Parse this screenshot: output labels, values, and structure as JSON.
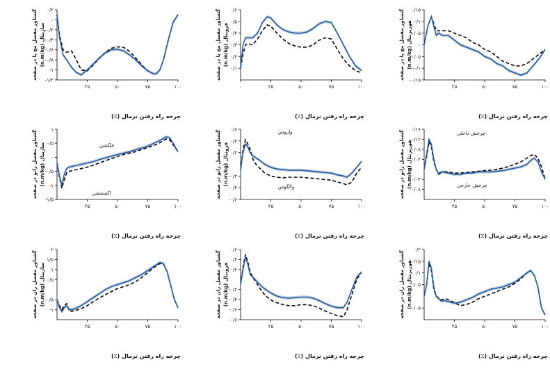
{
  "colors": {
    "solid": "#1f5aa6",
    "dashed": "#000000",
    "band": "#b9c4d2"
  },
  "chart_data": [
    {
      "type": "line",
      "xlabel": "چرخه راه رفتن نرمال (٪)",
      "ylabel": [
        "گشتاور مفصل مچ پا در صفحه",
        "ساژیتال (n.m/kg)"
      ],
      "xlim": [
        0,
        100
      ],
      "ylim": [
        -1.2,
        0.2
      ],
      "xticks": [
        25,
        50,
        75,
        100
      ],
      "xtick_labels": [
        "۲۵",
        "۵۰",
        "۷۵",
        "۱۰۰"
      ],
      "yticks": [
        0.2,
        0,
        -0.2,
        -0.4,
        -0.6,
        -0.8,
        -1,
        -1.2
      ],
      "ytick_labels": [
        "۰/۲",
        "۰",
        "-۰/۲",
        "-۰/۴",
        "-۰/۶",
        "-۰/۸",
        "-۱",
        "-۱/۲"
      ],
      "x": [
        0,
        2,
        5,
        8,
        12,
        16,
        20,
        25,
        30,
        35,
        40,
        45,
        50,
        55,
        60,
        65,
        70,
        75,
        80,
        82,
        85,
        88,
        92,
        96,
        100
      ],
      "series": [
        {
          "values": [
            0.1,
            -0.35,
            -0.7,
            -0.8,
            -0.95,
            -1.05,
            -1.1,
            -1.0,
            -0.88,
            -0.76,
            -0.66,
            -0.6,
            -0.59,
            -0.62,
            -0.7,
            -0.8,
            -0.92,
            -1.02,
            -1.08,
            -1.08,
            -1.0,
            -0.8,
            -0.4,
            -0.05,
            0.1
          ]
        },
        {
          "values": [
            0.1,
            -0.3,
            -0.6,
            -0.65,
            -0.62,
            -0.8,
            -1.0,
            -1.02,
            -0.9,
            -0.77,
            -0.65,
            -0.57,
            -0.54,
            -0.55,
            -0.63,
            -0.76,
            -0.9,
            -1.02,
            -1.08,
            -1.08,
            -1.0,
            -0.8,
            -0.4,
            -0.05,
            0.1
          ]
        }
      ]
    },
    {
      "type": "line",
      "xlabel": "چرخه راه رفتن نرمال (٪)",
      "ylabel": [
        "گشتاور مفصل مچ پا در صفحه",
        "فرونتال (n.m/kg)"
      ],
      "xlim": [
        0,
        100
      ],
      "ylim": [
        0,
        0.6
      ],
      "xticks": [
        0,
        25,
        50,
        75,
        100
      ],
      "xtick_labels": [
        "۰",
        "۲۵",
        "۵۰",
        "۷۵",
        "۱۰۰"
      ],
      "yticks": [
        0.6,
        0.5,
        0.4,
        0.3,
        0.2,
        0.1
      ],
      "ytick_labels": [
        "۰/۶",
        "۰/۵",
        "۰/۴",
        "۰/۳",
        "۰/۲",
        "۰/۱"
      ],
      "x": [
        0,
        2,
        4,
        6,
        10,
        14,
        18,
        22,
        25,
        30,
        35,
        40,
        45,
        50,
        55,
        60,
        65,
        70,
        75,
        80,
        85,
        90,
        95,
        100
      ],
      "series": [
        {
          "values": [
            0.1,
            0.3,
            0.36,
            0.36,
            0.36,
            0.4,
            0.49,
            0.54,
            0.53,
            0.47,
            0.43,
            0.41,
            0.4,
            0.4,
            0.41,
            0.44,
            0.48,
            0.5,
            0.49,
            0.4,
            0.3,
            0.2,
            0.12,
            0.08
          ]
        },
        {
          "values": [
            0.1,
            0.22,
            0.3,
            0.31,
            0.3,
            0.35,
            0.42,
            0.47,
            0.46,
            0.4,
            0.35,
            0.31,
            0.29,
            0.28,
            0.28,
            0.3,
            0.34,
            0.36,
            0.35,
            0.26,
            0.18,
            0.12,
            0.08,
            0.06
          ]
        }
      ]
    },
    {
      "type": "line",
      "xlabel": "چرخه راه رفتن نرمال (٪)",
      "ylabel": [
        "گشتاور مفصل مچ پا در صفحه",
        "هوریزنتال (n.m/kg)"
      ],
      "xlim": [
        0,
        100
      ],
      "ylim": [
        -0.15,
        0.15
      ],
      "xticks": [
        25,
        50,
        75,
        100
      ],
      "xtick_labels": [
        "۲۵",
        "۵۰",
        "۷۵",
        "۱۰۰"
      ],
      "yticks": [
        0.15,
        0.1,
        0.05,
        0,
        -0.05,
        -0.1,
        -0.15
      ],
      "ytick_labels": [
        "۰/۱۵",
        "۰/۱",
        "۰/۰۵",
        "۰",
        "-۰/۰۵",
        "-۰/۱",
        "-۰/۱۵"
      ],
      "x": [
        0,
        3,
        6,
        8,
        10,
        12,
        15,
        20,
        25,
        30,
        35,
        40,
        45,
        50,
        55,
        60,
        65,
        70,
        75,
        80,
        85,
        90,
        95,
        100
      ],
      "series": [
        {
          "values": [
            0.0,
            0.08,
            0.12,
            0.08,
            0.04,
            0.05,
            0.04,
            0.04,
            0.02,
            0.0,
            -0.01,
            -0.02,
            -0.03,
            -0.05,
            -0.06,
            -0.08,
            -0.09,
            -0.11,
            -0.12,
            -0.13,
            -0.12,
            -0.09,
            -0.06,
            -0.02
          ]
        },
        {
          "values": [
            0.0,
            0.08,
            0.12,
            0.09,
            0.06,
            0.06,
            0.06,
            0.06,
            0.05,
            0.04,
            0.03,
            0.01,
            0.0,
            -0.02,
            -0.03,
            -0.05,
            -0.07,
            -0.08,
            -0.09,
            -0.09,
            -0.08,
            -0.06,
            -0.04,
            -0.02
          ]
        }
      ]
    },
    {
      "type": "line",
      "xlabel": "چرخه راه رفتن نرمال (٪)",
      "ylabel": [
        "گشتاور مفصل زانو در صفحه",
        "ساژیتال (n.m/kg)"
      ],
      "xlim": [
        0,
        100
      ],
      "ylim": [
        -1.5,
        1
      ],
      "xticks": [
        25,
        50,
        75,
        100
      ],
      "xtick_labels": [
        "۲۵",
        "۵۰",
        "۷۵",
        "۱۰۰"
      ],
      "yticks": [
        1,
        0.5,
        0,
        -0.5,
        -1,
        -1.5
      ],
      "ytick_labels": [
        "۱",
        "۰/۵",
        "۰",
        "-۰/۵",
        "-۱",
        "-۱/۵"
      ],
      "annotations": [
        "فلکشن",
        "اکستنشن"
      ],
      "x": [
        0,
        2,
        4,
        6,
        8,
        10,
        15,
        20,
        25,
        30,
        35,
        40,
        45,
        50,
        55,
        60,
        65,
        70,
        75,
        80,
        85,
        90,
        93,
        96,
        100
      ],
      "series": [
        {
          "values": [
            -0.2,
            -0.65,
            -1.0,
            -0.6,
            -0.4,
            -0.35,
            -0.3,
            -0.25,
            -0.2,
            -0.15,
            -0.08,
            -0.02,
            0.04,
            0.1,
            0.15,
            0.2,
            0.27,
            0.33,
            0.4,
            0.5,
            0.6,
            0.73,
            0.7,
            0.5,
            0.2
          ]
        },
        {
          "values": [
            -0.2,
            -0.7,
            -1.1,
            -0.8,
            -0.55,
            -0.5,
            -0.45,
            -0.4,
            -0.35,
            -0.28,
            -0.2,
            -0.12,
            -0.05,
            0.03,
            0.1,
            0.15,
            0.2,
            0.28,
            0.35,
            0.42,
            0.52,
            0.65,
            0.63,
            0.45,
            0.2
          ]
        }
      ]
    },
    {
      "type": "line",
      "xlabel": "چرخه راه رفتن نرمال (٪)",
      "ylabel": [
        "گشتاور مفصل زانو در صفحه",
        "فرونتال (n.m/kg)"
      ],
      "xlim": [
        0,
        100
      ],
      "ylim": [
        -0.6,
        0.6
      ],
      "xticks": [
        25,
        50,
        75,
        100
      ],
      "xtick_labels": [
        "۲۵",
        "۵۰",
        "۷۵",
        "۱۰۰"
      ],
      "yticks": [
        0.6,
        0.4,
        0.2,
        -0.2,
        -0.4,
        -0.6
      ],
      "ytick_labels": [
        "۰/۶",
        "۰/۴",
        "۰/۲",
        "-۰/۲",
        "-۰/۴",
        "-۰/۶"
      ],
      "annotations": [
        "واروس",
        "والگوس"
      ],
      "x": [
        0,
        2,
        4,
        6,
        8,
        10,
        12,
        15,
        20,
        25,
        30,
        35,
        40,
        45,
        50,
        55,
        60,
        65,
        70,
        75,
        80,
        85,
        88,
        92,
        96,
        100
      ],
      "series": [
        {
          "values": [
            -0.1,
            0.2,
            0.35,
            0.3,
            0.2,
            0.15,
            0.12,
            0.08,
            0.0,
            -0.05,
            -0.08,
            -0.09,
            -0.1,
            -0.1,
            -0.1,
            -0.11,
            -0.12,
            -0.13,
            -0.14,
            -0.15,
            -0.18,
            -0.2,
            -0.22,
            -0.15,
            -0.05,
            0.05
          ]
        },
        {
          "values": [
            -0.1,
            0.25,
            0.42,
            0.35,
            0.25,
            0.1,
            0.02,
            -0.05,
            -0.15,
            -0.2,
            -0.22,
            -0.23,
            -0.22,
            -0.22,
            -0.22,
            -0.23,
            -0.24,
            -0.25,
            -0.26,
            -0.27,
            -0.3,
            -0.33,
            -0.35,
            -0.3,
            -0.15,
            -0.05
          ]
        }
      ]
    },
    {
      "type": "line",
      "xlabel": "چرخه راه رفتن نرمال (٪)",
      "ylabel": [
        "گشتاور مفصل زانو در صفحه",
        "هوریزنتال (n.m/kg)"
      ],
      "xlim": [
        0,
        100
      ],
      "ylim": [
        -0.12,
        0.16
      ],
      "xticks": [
        25,
        50,
        75,
        100
      ],
      "xtick_labels": [
        "۲۵",
        "۵۰",
        "۷۵",
        "۱۰۰"
      ],
      "yticks": [
        0.16,
        0.12,
        0.08,
        0.04,
        -0.04,
        -0.08
      ],
      "ytick_labels": [
        "۰/۱۶",
        "۰/۱۲",
        "۰/۰۸",
        "۰/۰۴",
        "-۰/۰۴",
        "-۰/۰۸"
      ],
      "annotations": [
        "چرخش داخلی",
        "چرخش خارجی"
      ],
      "x": [
        0,
        2,
        4,
        6,
        8,
        10,
        12,
        15,
        20,
        25,
        30,
        35,
        40,
        45,
        50,
        55,
        60,
        65,
        70,
        75,
        80,
        85,
        88,
        91,
        94,
        97,
        100
      ],
      "series": [
        {
          "values": [
            0.0,
            0.06,
            0.12,
            0.1,
            0.04,
            0.0,
            -0.02,
            -0.01,
            -0.015,
            -0.02,
            -0.02,
            -0.015,
            -0.015,
            -0.01,
            -0.01,
            -0.01,
            -0.008,
            -0.005,
            0.0,
            0.005,
            0.01,
            0.02,
            0.035,
            0.045,
            0.03,
            -0.01,
            -0.04
          ]
        },
        {
          "values": [
            0.0,
            0.05,
            0.11,
            0.09,
            0.03,
            0.0,
            -0.015,
            -0.01,
            -0.01,
            -0.015,
            -0.015,
            -0.012,
            -0.01,
            -0.008,
            -0.005,
            -0.003,
            0.0,
            0.005,
            0.012,
            0.02,
            0.03,
            0.045,
            0.055,
            0.06,
            0.045,
            0.01,
            -0.04
          ]
        }
      ]
    },
    {
      "type": "line",
      "xlabel": "چرخه راه رفتن نرمال (٪)",
      "ylabel": [
        "گشتاور مفصل ران در صفحه",
        "ساژیتال (n.m/kg)"
      ],
      "xlim": [
        0,
        100
      ],
      "ylim": [
        -1.5,
        2
      ],
      "xticks": [
        25,
        50,
        75,
        100
      ],
      "xtick_labels": [
        "۲۵",
        "۵۰",
        "۷۵",
        "۱۰۰"
      ],
      "yticks": [
        2,
        1.5,
        1,
        0.5,
        -0.5,
        -1
      ],
      "ytick_labels": [
        "۲",
        "۱/۵",
        "۱",
        "۰/۵",
        "-۰/۵",
        "-۱"
      ],
      "x": [
        0,
        2,
        4,
        6,
        8,
        10,
        12,
        15,
        20,
        25,
        30,
        35,
        40,
        45,
        50,
        55,
        60,
        65,
        70,
        75,
        80,
        85,
        88,
        91,
        94,
        97,
        100
      ],
      "series": [
        {
          "values": [
            -0.5,
            -0.9,
            -1.1,
            -0.9,
            -0.8,
            -1.0,
            -1.0,
            -0.95,
            -0.8,
            -0.6,
            -0.4,
            -0.2,
            0.0,
            0.15,
            0.25,
            0.35,
            0.45,
            0.6,
            0.75,
            0.95,
            1.15,
            1.35,
            1.3,
            0.9,
            0.2,
            -0.5,
            -0.9
          ]
        },
        {
          "values": [
            -0.5,
            -0.8,
            -1.0,
            -0.8,
            -0.7,
            -1.05,
            -1.08,
            -1.05,
            -0.95,
            -0.8,
            -0.6,
            -0.42,
            -0.25,
            -0.1,
            0.05,
            0.15,
            0.25,
            0.4,
            0.6,
            0.85,
            1.1,
            1.3,
            1.28,
            0.9,
            0.2,
            -0.5,
            -0.9
          ]
        }
      ]
    },
    {
      "type": "line",
      "xlabel": "چرخه راه رفتن نرمال (٪)",
      "ylabel": [
        "گشتاور مفصل ران در صفحه",
        "فرونتال (n.m/kg)"
      ],
      "xlim": [
        0,
        100
      ],
      "ylim": [
        -0.8,
        0.6
      ],
      "xticks": [
        25,
        50,
        75,
        100
      ],
      "xtick_labels": [
        "۲۵",
        "۵۰",
        "۷۵",
        "۱۰۰"
      ],
      "yticks": [
        0.6,
        0.4,
        0.2,
        -0.2,
        -0.4,
        -0.6,
        -0.8
      ],
      "ytick_labels": [
        "۰/۶",
        "۰/۴",
        "۰/۲",
        "-۰/۲",
        "-۰/۴",
        "-۰/۶",
        "-۰/۸"
      ],
      "x": [
        0,
        2,
        4,
        6,
        8,
        10,
        14,
        18,
        22,
        26,
        30,
        35,
        40,
        45,
        50,
        55,
        60,
        65,
        70,
        75,
        80,
        85,
        88,
        92,
        96,
        100
      ],
      "series": [
        {
          "values": [
            -0.1,
            0.2,
            0.45,
            0.3,
            0.1,
            0.05,
            -0.05,
            -0.15,
            -0.22,
            -0.28,
            -0.33,
            -0.36,
            -0.37,
            -0.36,
            -0.35,
            -0.35,
            -0.37,
            -0.42,
            -0.48,
            -0.53,
            -0.56,
            -0.56,
            -0.45,
            -0.2,
            0.05,
            0.15
          ]
        },
        {
          "values": [
            -0.1,
            0.25,
            0.5,
            0.35,
            0.15,
            0.05,
            -0.1,
            -0.25,
            -0.35,
            -0.42,
            -0.46,
            -0.5,
            -0.52,
            -0.52,
            -0.5,
            -0.5,
            -0.52,
            -0.57,
            -0.63,
            -0.68,
            -0.72,
            -0.74,
            -0.6,
            -0.3,
            0.0,
            0.15
          ]
        }
      ]
    },
    {
      "type": "line",
      "xlabel": "چرخه راه رفتن نرمال (٪)",
      "ylabel": [
        "گشتاور مفصل ران در صفحه",
        "هوریزنتال (n.m/kg)"
      ],
      "xlim": [
        0,
        100
      ],
      "ylim": [
        -0.1,
        0.2
      ],
      "xticks": [
        25,
        50,
        75,
        100
      ],
      "xtick_labels": [
        "۲۵",
        "۵۰",
        "۷۵",
        "۱۰۰"
      ],
      "yticks": [
        0.2,
        0.15,
        0.1,
        0.05,
        -0.05
      ],
      "ytick_labels": [
        "۰/۲",
        "۰/۱۵",
        "۰/۱",
        "۰/۰۵",
        "-۰/۰۵"
      ],
      "x": [
        0,
        2,
        4,
        6,
        8,
        10,
        14,
        18,
        22,
        26,
        30,
        35,
        40,
        45,
        50,
        55,
        60,
        65,
        70,
        75,
        80,
        85,
        88,
        91,
        94,
        97,
        100
      ],
      "series": [
        {
          "values": [
            0.0,
            0.05,
            0.15,
            0.12,
            0.04,
            0.0,
            -0.02,
            -0.02,
            -0.025,
            -0.03,
            -0.025,
            -0.015,
            -0.005,
            0.01,
            0.02,
            0.03,
            0.035,
            0.04,
            0.05,
            0.06,
            0.08,
            0.1,
            0.11,
            0.09,
            0.04,
            -0.05,
            -0.08
          ]
        },
        {
          "values": [
            0.0,
            0.05,
            0.14,
            0.11,
            0.03,
            0.0,
            -0.015,
            -0.01,
            -0.02,
            -0.03,
            -0.04,
            -0.035,
            -0.025,
            -0.01,
            0.0,
            0.01,
            0.02,
            0.03,
            0.04,
            0.055,
            0.075,
            0.1,
            0.11,
            0.09,
            0.04,
            -0.05,
            -0.08
          ]
        }
      ]
    }
  ]
}
